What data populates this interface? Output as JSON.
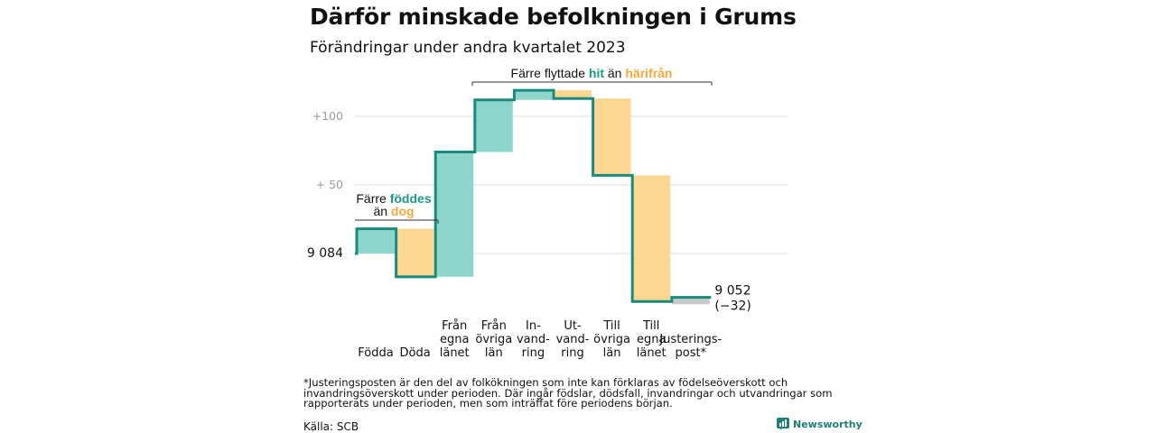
{
  "title": "Därför minskade befolkningen i Grums",
  "subtitle": "Förändringar under andra kvartalet 2023",
  "footnote": "*Justeringsposten är den del av folkökningen som inte kan förklaras av födelseöverskott och invandringsöverskott under perioden. Där ingår födslar, dödsfall, invandringar och utvandringar som rapporterats under perioden, men som inträffat före periodens början.",
  "source": "Källa: SCB",
  "brand": "Newsworthy",
  "colors": {
    "increase": "#8ed5cc",
    "decrease": "#fbd792",
    "adjustment": "#c8c8c8",
    "line": "#1a8a7c",
    "teal_text": "#1a9987",
    "orange_text": "#f2a93b"
  },
  "chart_data": {
    "type": "waterfall",
    "start_value": 9084,
    "start_label": "9 084",
    "end_label": "9 052",
    "change_label": "(−32)",
    "y_ticks": [
      {
        "value": 50,
        "label": "+  50"
      },
      {
        "value": 100,
        "label": "+100"
      }
    ],
    "y_axis_labels_relative_to_start": true,
    "grid": true,
    "steps": [
      {
        "category": [
          "Födda"
        ],
        "value": 18,
        "kind": "increase"
      },
      {
        "category": [
          "Döda"
        ],
        "value": -35,
        "kind": "decrease"
      },
      {
        "category": [
          "Från",
          "egna",
          "länet"
        ],
        "value": 91,
        "kind": "increase"
      },
      {
        "category": [
          "Från",
          "övriga",
          "län"
        ],
        "value": 38,
        "kind": "increase"
      },
      {
        "category": [
          "In-",
          "vand-",
          "ring"
        ],
        "value": 7,
        "kind": "increase"
      },
      {
        "category": [
          "Ut-",
          "vand-",
          "ring"
        ],
        "value": -6,
        "kind": "decrease"
      },
      {
        "category": [
          "Till",
          "övriga",
          "län"
        ],
        "value": -56,
        "kind": "decrease"
      },
      {
        "category": [
          "Till",
          "egna",
          "länet"
        ],
        "value": -92,
        "kind": "decrease"
      },
      {
        "category": [
          "Justerings-",
          "post*"
        ],
        "value": 3,
        "kind": "adjustment"
      }
    ],
    "annotations": [
      {
        "parts": [
          "Färre ",
          "föddes"
        ],
        "parts2": [
          "än ",
          "dog"
        ]
      },
      {
        "parts": [
          "Färre flyttade ",
          "hit",
          "  än ",
          "härifrån"
        ]
      }
    ]
  }
}
